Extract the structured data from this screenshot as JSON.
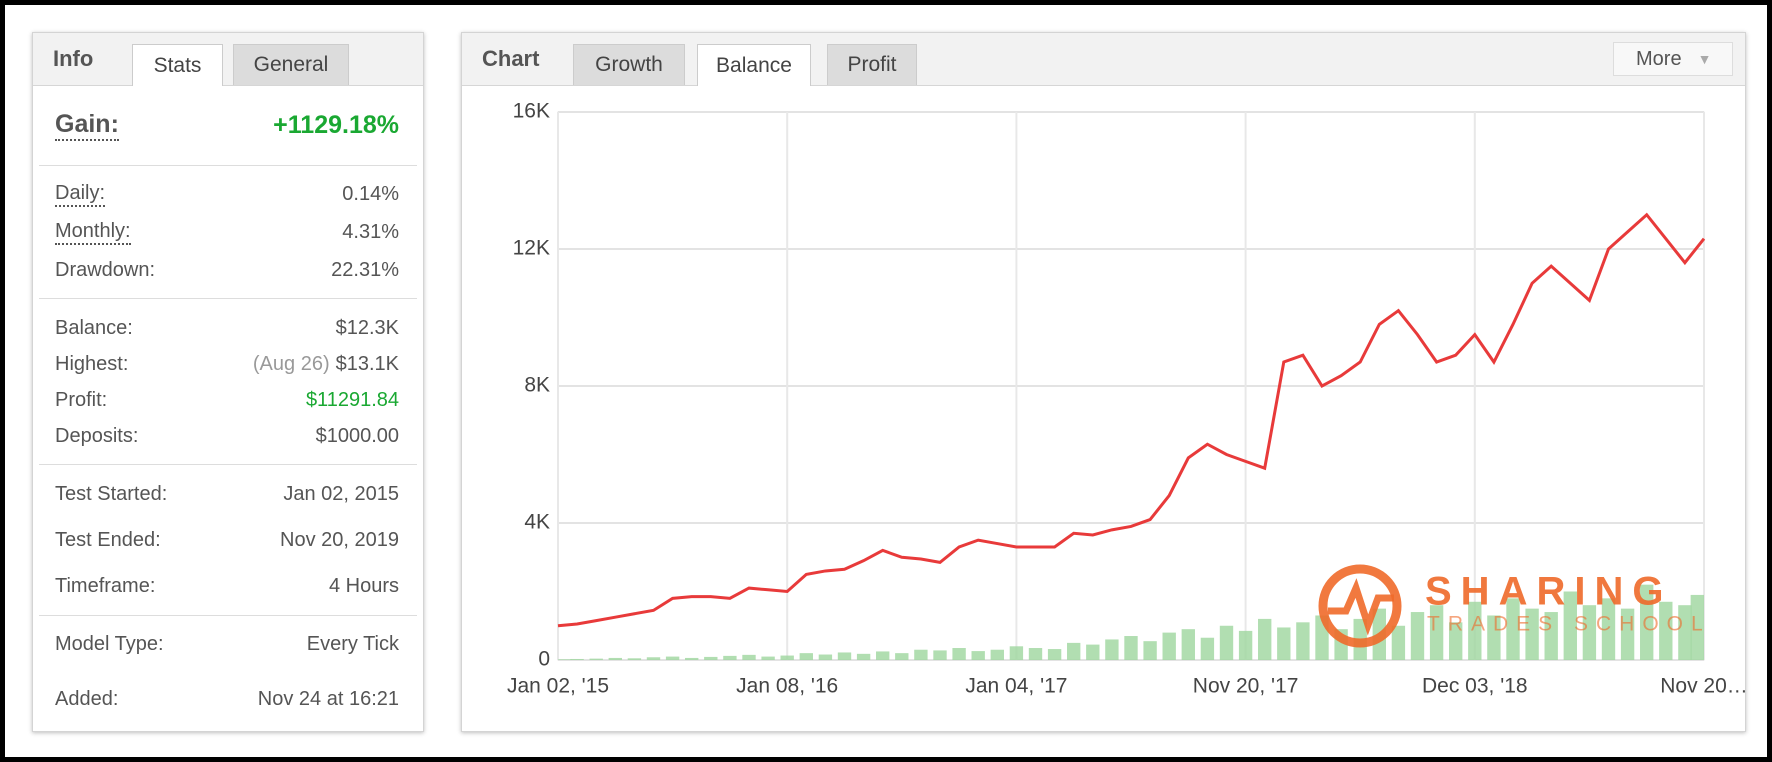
{
  "info_panel": {
    "tabs": [
      "Info",
      "Stats",
      "General"
    ],
    "rows": [
      {
        "label": "Gain:",
        "value": "+1129.18%"
      },
      {
        "label": "Daily:",
        "value": "0.14%"
      },
      {
        "label": "Monthly:",
        "value": "4.31%"
      },
      {
        "label": "Drawdown:",
        "value": "22.31%"
      },
      {
        "label": "Balance:",
        "value": "$12.3K"
      },
      {
        "label": "Highest:",
        "note": "(Aug 26)",
        "value": "$13.1K"
      },
      {
        "label": "Profit:",
        "value": "$11291.84"
      },
      {
        "label": "Deposits:",
        "value": "$1000.00"
      },
      {
        "label": "Test Started:",
        "value": "Jan 02, 2015"
      },
      {
        "label": "Test Ended:",
        "value": "Nov 20, 2019"
      },
      {
        "label": "Timeframe:",
        "value": "4 Hours"
      },
      {
        "label": "Model Type:",
        "value": "Every Tick"
      },
      {
        "label": "Added:",
        "value": "Nov 24 at 16:21"
      }
    ]
  },
  "chart_panel": {
    "heading": "Chart",
    "tabs": [
      "Growth",
      "Balance",
      "Profit"
    ],
    "more": "More",
    "watermark": {
      "line1": "SHARING",
      "line2": "TRADES SCHOOL"
    }
  },
  "chart_data": {
    "type": "line",
    "categories": [
      "Jan 02, '15",
      null,
      null,
      null,
      null,
      null,
      null,
      null,
      null,
      null,
      null,
      null,
      "Jan 08, '16",
      null,
      null,
      null,
      null,
      null,
      null,
      null,
      null,
      null,
      null,
      null,
      "Jan 04, '17",
      null,
      null,
      null,
      null,
      null,
      null,
      null,
      null,
      null,
      null,
      null,
      "Nov 20, '17",
      null,
      null,
      null,
      null,
      null,
      null,
      null,
      null,
      null,
      null,
      null,
      "Dec 03, '18",
      null,
      null,
      null,
      null,
      null,
      null,
      null,
      null,
      null,
      null,
      null,
      "Nov 20…"
    ],
    "series": [
      {
        "name": "Balance",
        "color": "#e83a3a",
        "values": [
          1000,
          1050,
          1150,
          1250,
          1350,
          1450,
          1800,
          1850,
          1850,
          1800,
          2100,
          2050,
          2000,
          2500,
          2600,
          2650,
          2900,
          3200,
          3000,
          2950,
          2850,
          3300,
          3500,
          3400,
          3300,
          3300,
          3300,
          3700,
          3650,
          3800,
          3900,
          4100,
          4800,
          5900,
          6300,
          6000,
          5800,
          5600,
          8700,
          8900,
          8000,
          8300,
          8700,
          9800,
          10200,
          9500,
          8700,
          8900,
          9500,
          8700,
          9800,
          11000,
          11500,
          11000,
          10500,
          12000,
          12500,
          13000,
          12300,
          11600,
          12300
        ]
      },
      {
        "name": "Volume",
        "color": "#9ed69e",
        "values": [
          20,
          30,
          40,
          60,
          50,
          80,
          100,
          60,
          90,
          120,
          150,
          100,
          130,
          200,
          160,
          220,
          180,
          250,
          200,
          300,
          280,
          350,
          260,
          300,
          400,
          350,
          320,
          500,
          450,
          600,
          700,
          550,
          800,
          900,
          650,
          1000,
          850,
          1200,
          950,
          1100,
          1300,
          900,
          1200,
          1500,
          1000,
          1400,
          1600,
          1100,
          1700,
          1300,
          1800,
          1500,
          1400,
          2000,
          1600,
          1800,
          1500,
          2200,
          1700,
          1600,
          1900
        ]
      }
    ],
    "ylim": [
      0,
      16000
    ],
    "yticks": [
      0,
      {
        "value": 4000,
        "label": "4K"
      },
      {
        "value": 8000,
        "label": "8K"
      },
      {
        "value": 12000,
        "label": "12K"
      },
      {
        "value": 16000,
        "label": "16K"
      }
    ],
    "grid": true
  }
}
